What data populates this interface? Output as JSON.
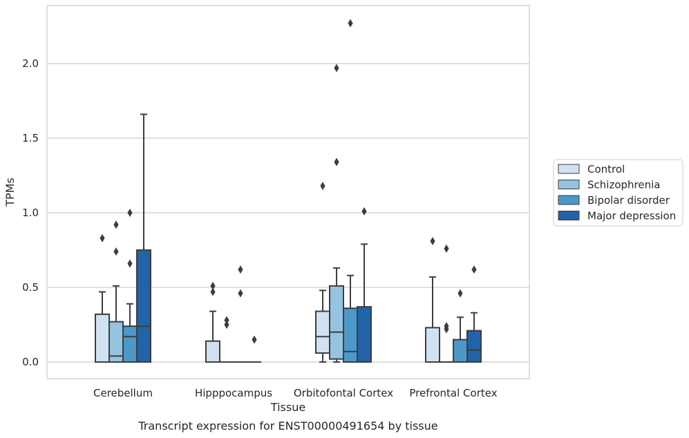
{
  "chart_data": {
    "type": "box",
    "title": "",
    "caption": "Transcript expression for ENST00000491654 by tissue",
    "xlabel": "Tissue",
    "ylabel": "TPMs",
    "ylim": [
      -0.11,
      2.39
    ],
    "yticks": [
      0.0,
      0.5,
      1.0,
      1.5,
      2.0
    ],
    "ytick_labels": [
      "0.0",
      "0.5",
      "1.0",
      "1.5",
      "2.0"
    ],
    "grid": "horizontal",
    "legend_position": "right",
    "categories": [
      "Cerebellum",
      "Hipppocampus",
      "Orbitofontal Cortex",
      "Prefrontal Cortex"
    ],
    "series": [
      {
        "name": "Control",
        "color": "#d0e1f2",
        "boxes": [
          {
            "min": 0.0,
            "q1": 0.0,
            "median": 0.0,
            "q3": 0.32,
            "max": 0.47,
            "outliers": [
              0.83
            ]
          },
          {
            "min": 0.0,
            "q1": 0.0,
            "median": 0.0,
            "q3": 0.14,
            "max": 0.34,
            "outliers": [
              0.47,
              0.51
            ]
          },
          {
            "min": 0.0,
            "q1": 0.06,
            "median": 0.17,
            "q3": 0.34,
            "max": 0.48,
            "outliers": [
              1.18
            ]
          },
          {
            "min": 0.0,
            "q1": 0.0,
            "median": 0.0,
            "q3": 0.23,
            "max": 0.57,
            "outliers": [
              0.81
            ]
          }
        ]
      },
      {
        "name": "Schizophrenia",
        "color": "#94c4df",
        "boxes": [
          {
            "min": 0.0,
            "q1": 0.0,
            "median": 0.04,
            "q3": 0.27,
            "max": 0.51,
            "outliers": [
              0.74,
              0.92
            ]
          },
          {
            "min": 0.0,
            "q1": 0.0,
            "median": 0.0,
            "q3": 0.0,
            "max": 0.0,
            "outliers": [
              0.25,
              0.28
            ]
          },
          {
            "min": 0.0,
            "q1": 0.02,
            "median": 0.2,
            "q3": 0.51,
            "max": 0.63,
            "outliers": [
              1.34,
              1.97
            ]
          },
          {
            "min": 0.0,
            "q1": 0.0,
            "median": 0.0,
            "q3": 0.0,
            "max": 0.0,
            "outliers": [
              0.22,
              0.24,
              0.76
            ]
          }
        ]
      },
      {
        "name": "Bipolar disorder",
        "color": "#4b98c9",
        "boxes": [
          {
            "min": 0.0,
            "q1": 0.0,
            "median": 0.17,
            "q3": 0.24,
            "max": 0.39,
            "outliers": [
              0.66,
              1.0
            ]
          },
          {
            "min": 0.0,
            "q1": 0.0,
            "median": 0.0,
            "q3": 0.0,
            "max": 0.0,
            "outliers": [
              0.46,
              0.62
            ]
          },
          {
            "min": 0.0,
            "q1": 0.0,
            "median": 0.07,
            "q3": 0.36,
            "max": 0.58,
            "outliers": [
              2.27
            ]
          },
          {
            "min": 0.0,
            "q1": 0.0,
            "median": 0.0,
            "q3": 0.15,
            "max": 0.3,
            "outliers": [
              0.46
            ]
          }
        ]
      },
      {
        "name": "Major depression",
        "color": "#2163a6",
        "boxes": [
          {
            "min": 0.0,
            "q1": 0.0,
            "median": 0.24,
            "q3": 0.75,
            "max": 1.66,
            "outliers": []
          },
          {
            "min": 0.0,
            "q1": 0.0,
            "median": 0.0,
            "q3": 0.0,
            "max": 0.0,
            "outliers": [
              0.15
            ]
          },
          {
            "min": 0.0,
            "q1": 0.0,
            "median": 0.0,
            "q3": 0.37,
            "max": 0.79,
            "outliers": [
              1.01
            ]
          },
          {
            "min": 0.0,
            "q1": 0.0,
            "median": 0.08,
            "q3": 0.21,
            "max": 0.33,
            "outliers": [
              0.62
            ]
          }
        ]
      }
    ]
  },
  "colors": {
    "box_edge": "#3d3d3d",
    "grid": "#cccccc",
    "frame": "#cccccc"
  }
}
